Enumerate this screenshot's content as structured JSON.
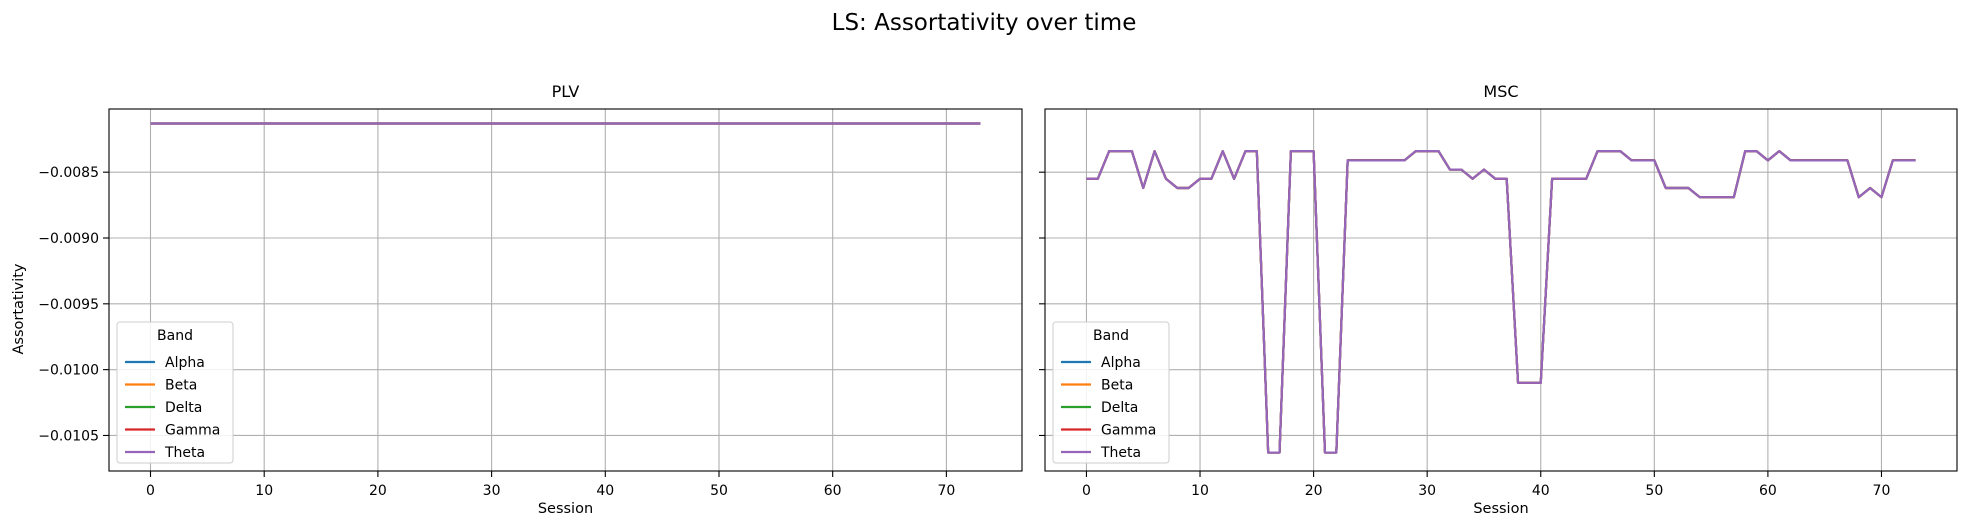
{
  "figure": {
    "title": "LS: Assortativity over time"
  },
  "colors": {
    "Alpha": "#1f77b4",
    "Beta": "#ff7f0e",
    "Delta": "#2ca02c",
    "Gamma": "#d62728",
    "Theta": "#9467bd"
  },
  "chart_data": [
    {
      "type": "line",
      "title": "PLV",
      "xlabel": "Session",
      "ylabel": "Assortativity",
      "xlim": [
        -3.65,
        76.65
      ],
      "ylim": [
        -0.01077,
        -0.00802
      ],
      "xticks": [
        0,
        10,
        20,
        30,
        40,
        50,
        60,
        70
      ],
      "yticks": [
        -0.0085,
        -0.009,
        -0.0095,
        -0.01,
        -0.0105
      ],
      "ytick_labels": [
        "−0.0085",
        "−0.0090",
        "−0.0095",
        "−0.0100",
        "−0.0105"
      ],
      "grid": true,
      "legend": {
        "title": "Band",
        "placement": "lower-left",
        "entries": [
          "Alpha",
          "Beta",
          "Delta",
          "Gamma",
          "Theta"
        ]
      },
      "series": [
        {
          "name": "Alpha",
          "x_start": 0,
          "values": [
            -0.00813,
            -0.00813,
            -0.00813,
            -0.00813,
            -0.00813,
            -0.00813,
            -0.00813,
            -0.00813,
            -0.00813,
            -0.00813,
            -0.00813,
            -0.00813,
            -0.00813,
            -0.00813,
            -0.00813,
            -0.00813,
            -0.00813,
            -0.00813,
            -0.00813,
            -0.00813,
            -0.00813,
            -0.00813,
            -0.00813,
            -0.00813,
            -0.00813,
            -0.00813,
            -0.00813,
            -0.00813,
            -0.00813,
            -0.00813,
            -0.00813,
            -0.00813,
            -0.00813,
            -0.00813,
            -0.00813,
            -0.00813,
            -0.00813,
            -0.00813,
            -0.00813,
            -0.00813,
            -0.00813,
            -0.00813,
            -0.00813,
            -0.00813,
            -0.00813,
            -0.00813,
            -0.00813,
            -0.00813,
            -0.00813,
            -0.00813,
            -0.00813,
            -0.00813,
            -0.00813,
            -0.00813,
            -0.00813,
            -0.00813,
            -0.00813,
            -0.00813,
            -0.00813,
            -0.00813,
            -0.00813,
            -0.00813,
            -0.00813,
            -0.00813,
            -0.00813,
            -0.00813,
            -0.00813,
            -0.00813,
            -0.00813,
            -0.00813,
            -0.00813,
            -0.00813,
            -0.00813,
            -0.00813
          ]
        },
        {
          "name": "Beta",
          "x_start": 0,
          "values": [
            -0.00813,
            -0.00813,
            -0.00813,
            -0.00813,
            -0.00813,
            -0.00813,
            -0.00813,
            -0.00813,
            -0.00813,
            -0.00813,
            -0.00813,
            -0.00813,
            -0.00813,
            -0.00813,
            -0.00813,
            -0.00813,
            -0.00813,
            -0.00813,
            -0.00813,
            -0.00813,
            -0.00813,
            -0.00813,
            -0.00813,
            -0.00813,
            -0.00813,
            -0.00813,
            -0.00813,
            -0.00813,
            -0.00813,
            -0.00813,
            -0.00813,
            -0.00813,
            -0.00813,
            -0.00813,
            -0.00813,
            -0.00813,
            -0.00813,
            -0.00813,
            -0.00813,
            -0.00813,
            -0.00813,
            -0.00813,
            -0.00813,
            -0.00813,
            -0.00813,
            -0.00813,
            -0.00813,
            -0.00813,
            -0.00813,
            -0.00813,
            -0.00813,
            -0.00813,
            -0.00813,
            -0.00813,
            -0.00813,
            -0.00813,
            -0.00813,
            -0.00813,
            -0.00813,
            -0.00813,
            -0.00813,
            -0.00813,
            -0.00813,
            -0.00813,
            -0.00813,
            -0.00813,
            -0.00813,
            -0.00813,
            -0.00813,
            -0.00813,
            -0.00813,
            -0.00813,
            -0.00813,
            -0.00813
          ]
        },
        {
          "name": "Delta",
          "x_start": 0,
          "values": [
            -0.00813,
            -0.00813,
            -0.00813,
            -0.00813,
            -0.00813,
            -0.00813,
            -0.00813,
            -0.00813,
            -0.00813,
            -0.00813,
            -0.00813,
            -0.00813,
            -0.00813,
            -0.00813,
            -0.00813,
            -0.00813,
            -0.00813,
            -0.00813,
            -0.00813,
            -0.00813,
            -0.00813,
            -0.00813,
            -0.00813,
            -0.00813,
            -0.00813,
            -0.00813,
            -0.00813,
            -0.00813,
            -0.00813,
            -0.00813,
            -0.00813,
            -0.00813,
            -0.00813,
            -0.00813,
            -0.00813,
            -0.00813,
            -0.00813,
            -0.00813,
            -0.00813,
            -0.00813,
            -0.00813,
            -0.00813,
            -0.00813,
            -0.00813,
            -0.00813,
            -0.00813,
            -0.00813,
            -0.00813,
            -0.00813,
            -0.00813,
            -0.00813,
            -0.00813,
            -0.00813,
            -0.00813,
            -0.00813,
            -0.00813,
            -0.00813,
            -0.00813,
            -0.00813,
            -0.00813,
            -0.00813,
            -0.00813,
            -0.00813,
            -0.00813,
            -0.00813,
            -0.00813,
            -0.00813,
            -0.00813,
            -0.00813,
            -0.00813,
            -0.00813,
            -0.00813,
            -0.00813,
            -0.00813
          ]
        },
        {
          "name": "Gamma",
          "x_start": 0,
          "values": [
            -0.00813,
            -0.00813,
            -0.00813,
            -0.00813,
            -0.00813,
            -0.00813,
            -0.00813,
            -0.00813,
            -0.00813,
            -0.00813,
            -0.00813,
            -0.00813,
            -0.00813,
            -0.00813,
            -0.00813,
            -0.00813,
            -0.00813,
            -0.00813,
            -0.00813,
            -0.00813,
            -0.00813,
            -0.00813,
            -0.00813,
            -0.00813,
            -0.00813,
            -0.00813,
            -0.00813,
            -0.00813,
            -0.00813,
            -0.00813,
            -0.00813,
            -0.00813,
            -0.00813,
            -0.00813,
            -0.00813,
            -0.00813,
            -0.00813,
            -0.00813,
            -0.00813,
            -0.00813,
            -0.00813,
            -0.00813,
            -0.00813,
            -0.00813,
            -0.00813,
            -0.00813,
            -0.00813,
            -0.00813,
            -0.00813,
            -0.00813,
            -0.00813,
            -0.00813,
            -0.00813,
            -0.00813,
            -0.00813,
            -0.00813,
            -0.00813,
            -0.00813,
            -0.00813,
            -0.00813,
            -0.00813,
            -0.00813,
            -0.00813,
            -0.00813,
            -0.00813,
            -0.00813,
            -0.00813,
            -0.00813,
            -0.00813,
            -0.00813,
            -0.00813,
            -0.00813,
            -0.00813,
            -0.00813
          ]
        },
        {
          "name": "Theta",
          "x_start": 0,
          "values": [
            -0.00813,
            -0.00813,
            -0.00813,
            -0.00813,
            -0.00813,
            -0.00813,
            -0.00813,
            -0.00813,
            -0.00813,
            -0.00813,
            -0.00813,
            -0.00813,
            -0.00813,
            -0.00813,
            -0.00813,
            -0.00813,
            -0.00813,
            -0.00813,
            -0.00813,
            -0.00813,
            -0.00813,
            -0.00813,
            -0.00813,
            -0.00813,
            -0.00813,
            -0.00813,
            -0.00813,
            -0.00813,
            -0.00813,
            -0.00813,
            -0.00813,
            -0.00813,
            -0.00813,
            -0.00813,
            -0.00813,
            -0.00813,
            -0.00813,
            -0.00813,
            -0.00813,
            -0.00813,
            -0.00813,
            -0.00813,
            -0.00813,
            -0.00813,
            -0.00813,
            -0.00813,
            -0.00813,
            -0.00813,
            -0.00813,
            -0.00813,
            -0.00813,
            -0.00813,
            -0.00813,
            -0.00813,
            -0.00813,
            -0.00813,
            -0.00813,
            -0.00813,
            -0.00813,
            -0.00813,
            -0.00813,
            -0.00813,
            -0.00813,
            -0.00813,
            -0.00813,
            -0.00813,
            -0.00813,
            -0.00813,
            -0.00813,
            -0.00813,
            -0.00813,
            -0.00813,
            -0.00813,
            -0.00813
          ]
        }
      ]
    },
    {
      "type": "line",
      "title": "MSC",
      "xlabel": "Session",
      "ylabel": "",
      "xlim": [
        -3.65,
        76.65
      ],
      "ylim": [
        -0.01077,
        -0.00802
      ],
      "xticks": [
        0,
        10,
        20,
        30,
        40,
        50,
        60,
        70
      ],
      "yticks": [
        -0.0085,
        -0.009,
        -0.0095,
        -0.01,
        -0.0105
      ],
      "grid": true,
      "legend": {
        "title": "Band",
        "placement": "lower-left",
        "entries": [
          "Alpha",
          "Beta",
          "Delta",
          "Gamma",
          "Theta"
        ]
      },
      "series": [
        {
          "name": "Alpha",
          "x_start": 0,
          "values": [
            -0.00855,
            -0.00855,
            -0.00834,
            -0.00834,
            -0.00834,
            -0.00862,
            -0.00834,
            -0.00855,
            -0.00862,
            -0.00862,
            -0.00855,
            -0.00855,
            -0.00834,
            -0.00855,
            -0.00834,
            -0.00834,
            -0.01063,
            -0.01063,
            -0.00834,
            -0.00834,
            -0.00834,
            -0.01063,
            -0.01063,
            -0.00841,
            -0.00841,
            -0.00841,
            -0.00841,
            -0.00841,
            -0.00841,
            -0.00834,
            -0.00834,
            -0.00834,
            -0.00848,
            -0.00848,
            -0.00855,
            -0.00848,
            -0.00855,
            -0.00855,
            -0.0101,
            -0.0101,
            -0.0101,
            -0.00855,
            -0.00855,
            -0.00855,
            -0.00855,
            -0.00834,
            -0.00834,
            -0.00834,
            -0.00841,
            -0.00841,
            -0.00841,
            -0.00862,
            -0.00862,
            -0.00862,
            -0.00869,
            -0.00869,
            -0.00869,
            -0.00869,
            -0.00834,
            -0.00834,
            -0.00841,
            -0.00834,
            -0.00841,
            -0.00841,
            -0.00841,
            -0.00841,
            -0.00841,
            -0.00841,
            -0.00869,
            -0.00862,
            -0.00869,
            -0.00841,
            -0.00841,
            -0.00841
          ]
        },
        {
          "name": "Beta",
          "x_start": 0,
          "values": [
            -0.00855,
            -0.00855,
            -0.00834,
            -0.00834,
            -0.00834,
            -0.00862,
            -0.00834,
            -0.00855,
            -0.00862,
            -0.00862,
            -0.00855,
            -0.00855,
            -0.00834,
            -0.00855,
            -0.00834,
            -0.00834,
            -0.01063,
            -0.01063,
            -0.00834,
            -0.00834,
            -0.00834,
            -0.01063,
            -0.01063,
            -0.00841,
            -0.00841,
            -0.00841,
            -0.00841,
            -0.00841,
            -0.00841,
            -0.00834,
            -0.00834,
            -0.00834,
            -0.00848,
            -0.00848,
            -0.00855,
            -0.00848,
            -0.00855,
            -0.00855,
            -0.0101,
            -0.0101,
            -0.0101,
            -0.00855,
            -0.00855,
            -0.00855,
            -0.00855,
            -0.00834,
            -0.00834,
            -0.00834,
            -0.00841,
            -0.00841,
            -0.00841,
            -0.00862,
            -0.00862,
            -0.00862,
            -0.00869,
            -0.00869,
            -0.00869,
            -0.00869,
            -0.00834,
            -0.00834,
            -0.00841,
            -0.00834,
            -0.00841,
            -0.00841,
            -0.00841,
            -0.00841,
            -0.00841,
            -0.00841,
            -0.00869,
            -0.00862,
            -0.00869,
            -0.00841,
            -0.00841,
            -0.00841
          ]
        },
        {
          "name": "Delta",
          "x_start": 0,
          "values": [
            -0.00855,
            -0.00855,
            -0.00834,
            -0.00834,
            -0.00834,
            -0.00862,
            -0.00834,
            -0.00855,
            -0.00862,
            -0.00862,
            -0.00855,
            -0.00855,
            -0.00834,
            -0.00855,
            -0.00834,
            -0.00834,
            -0.01063,
            -0.01063,
            -0.00834,
            -0.00834,
            -0.00834,
            -0.01063,
            -0.01063,
            -0.00841,
            -0.00841,
            -0.00841,
            -0.00841,
            -0.00841,
            -0.00841,
            -0.00834,
            -0.00834,
            -0.00834,
            -0.00848,
            -0.00848,
            -0.00855,
            -0.00848,
            -0.00855,
            -0.00855,
            -0.0101,
            -0.0101,
            -0.0101,
            -0.00855,
            -0.00855,
            -0.00855,
            -0.00855,
            -0.00834,
            -0.00834,
            -0.00834,
            -0.00841,
            -0.00841,
            -0.00841,
            -0.00862,
            -0.00862,
            -0.00862,
            -0.00869,
            -0.00869,
            -0.00869,
            -0.00869,
            -0.00834,
            -0.00834,
            -0.00841,
            -0.00834,
            -0.00841,
            -0.00841,
            -0.00841,
            -0.00841,
            -0.00841,
            -0.00841,
            -0.00869,
            -0.00862,
            -0.00869,
            -0.00841,
            -0.00841,
            -0.00841
          ]
        },
        {
          "name": "Gamma",
          "x_start": 0,
          "values": [
            -0.00855,
            -0.00855,
            -0.00834,
            -0.00834,
            -0.00834,
            -0.00862,
            -0.00834,
            -0.00855,
            -0.00862,
            -0.00862,
            -0.00855,
            -0.00855,
            -0.00834,
            -0.00855,
            -0.00834,
            -0.00834,
            -0.01063,
            -0.01063,
            -0.00834,
            -0.00834,
            -0.00834,
            -0.01063,
            -0.01063,
            -0.00841,
            -0.00841,
            -0.00841,
            -0.00841,
            -0.00841,
            -0.00841,
            -0.00834,
            -0.00834,
            -0.00834,
            -0.00848,
            -0.00848,
            -0.00855,
            -0.00848,
            -0.00855,
            -0.00855,
            -0.0101,
            -0.0101,
            -0.0101,
            -0.00855,
            -0.00855,
            -0.00855,
            -0.00855,
            -0.00834,
            -0.00834,
            -0.00834,
            -0.00841,
            -0.00841,
            -0.00841,
            -0.00862,
            -0.00862,
            -0.00862,
            -0.00869,
            -0.00869,
            -0.00869,
            -0.00869,
            -0.00834,
            -0.00834,
            -0.00841,
            -0.00834,
            -0.00841,
            -0.00841,
            -0.00841,
            -0.00841,
            -0.00841,
            -0.00841,
            -0.00869,
            -0.00862,
            -0.00869,
            -0.00841,
            -0.00841,
            -0.00841
          ]
        },
        {
          "name": "Theta",
          "x_start": 0,
          "values": [
            -0.00855,
            -0.00855,
            -0.00834,
            -0.00834,
            -0.00834,
            -0.00862,
            -0.00834,
            -0.00855,
            -0.00862,
            -0.00862,
            -0.00855,
            -0.00855,
            -0.00834,
            -0.00855,
            -0.00834,
            -0.00834,
            -0.01063,
            -0.01063,
            -0.00834,
            -0.00834,
            -0.00834,
            -0.01063,
            -0.01063,
            -0.00841,
            -0.00841,
            -0.00841,
            -0.00841,
            -0.00841,
            -0.00841,
            -0.00834,
            -0.00834,
            -0.00834,
            -0.00848,
            -0.00848,
            -0.00855,
            -0.00848,
            -0.00855,
            -0.00855,
            -0.0101,
            -0.0101,
            -0.0101,
            -0.00855,
            -0.00855,
            -0.00855,
            -0.00855,
            -0.00834,
            -0.00834,
            -0.00834,
            -0.00841,
            -0.00841,
            -0.00841,
            -0.00862,
            -0.00862,
            -0.00862,
            -0.00869,
            -0.00869,
            -0.00869,
            -0.00869,
            -0.00834,
            -0.00834,
            -0.00841,
            -0.00834,
            -0.00841,
            -0.00841,
            -0.00841,
            -0.00841,
            -0.00841,
            -0.00841,
            -0.00869,
            -0.00862,
            -0.00869,
            -0.00841,
            -0.00841,
            -0.00841
          ]
        }
      ]
    }
  ]
}
